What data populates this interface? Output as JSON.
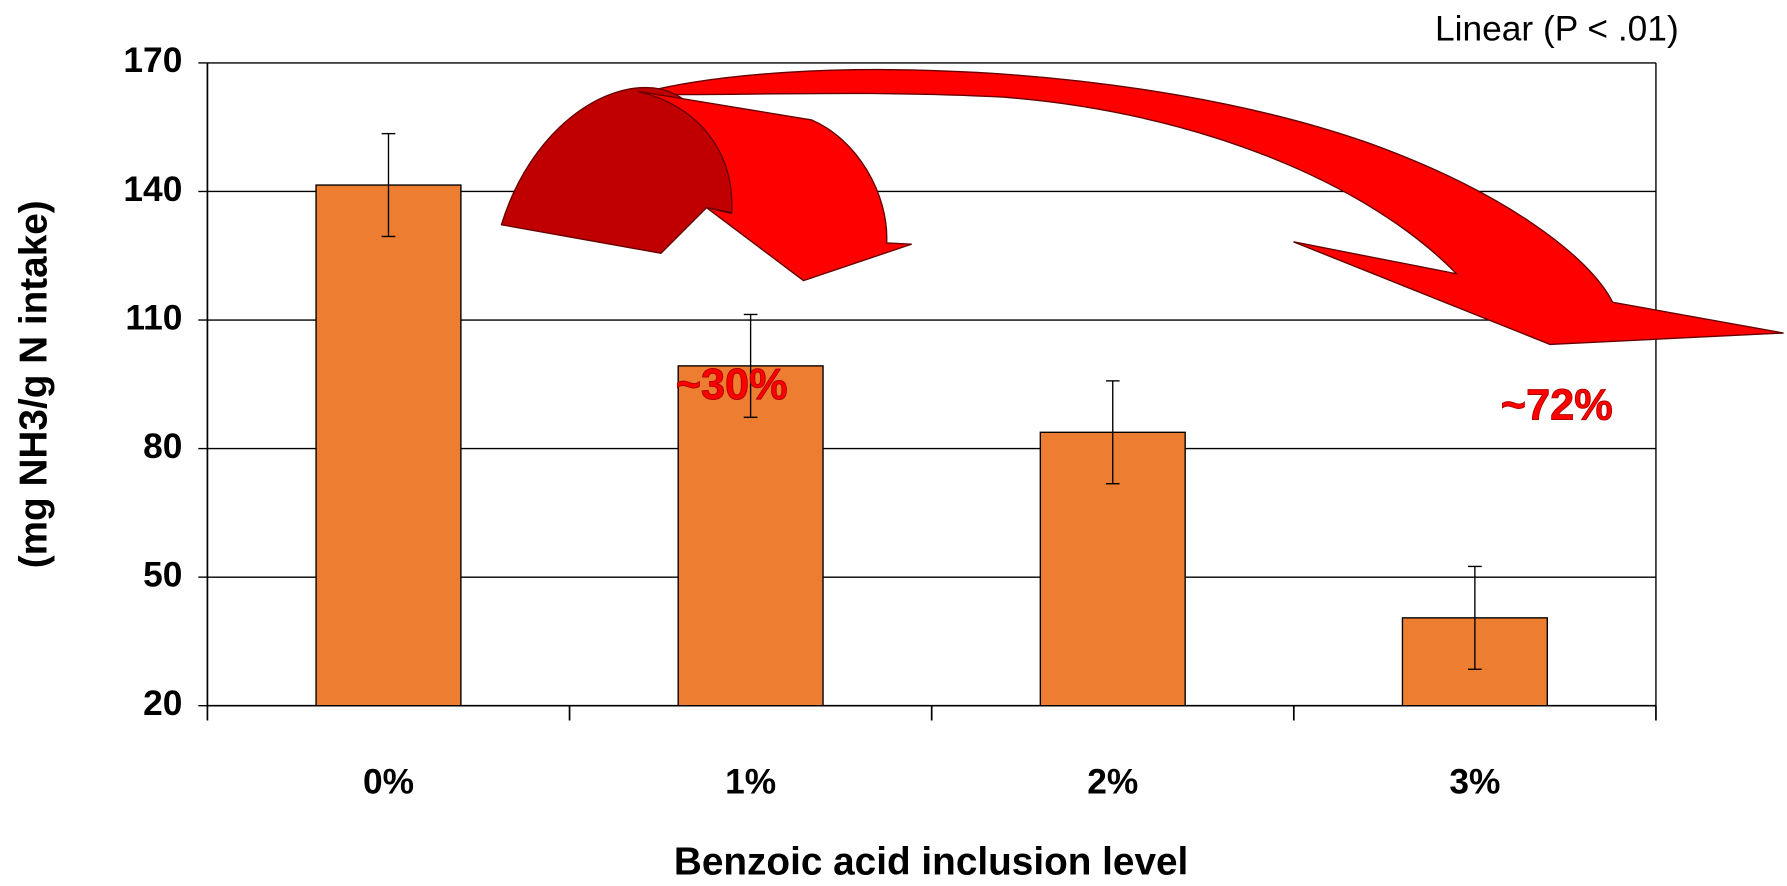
{
  "chart_data": {
    "type": "bar",
    "y_label": "(mg NH3/g N intake)",
    "x_label": "Benzoic acid inclusion level",
    "annotations": [
      "Linear (P < .01)",
      "~30%",
      "~72%"
    ],
    "categories": [
      "0%",
      "1%",
      "2%",
      "3%"
    ],
    "values": [
      141.5,
      99.3,
      83.8,
      40.5
    ],
    "errors": [
      12,
      12,
      12,
      12
    ],
    "color": "#ed7d31",
    "ylim": [
      20,
      170
    ],
    "yticks": [
      20,
      50,
      80,
      110,
      140,
      170
    ],
    "grid": true
  }
}
